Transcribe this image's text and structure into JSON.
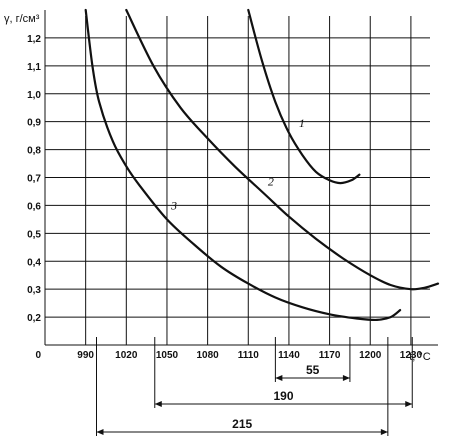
{
  "chart_data": {
    "type": "line",
    "ylabel": "γ, г/см³",
    "xlabel": "t, °C",
    "x_ticks": [
      990,
      1020,
      1050,
      1080,
      1110,
      1140,
      1170,
      1200,
      1230
    ],
    "x_tick_labels": [
      "990",
      "1020",
      "1050",
      "1080",
      "1110",
      "1140",
      "1170",
      "1200",
      "1230"
    ],
    "y_ticks": [
      0.2,
      0.3,
      0.4,
      0.5,
      0.6,
      0.7,
      0.8,
      0.9,
      1.0,
      1.1,
      1.2
    ],
    "y_tick_labels": [
      "0,2",
      "0,3",
      "0,4",
      "0,5",
      "0,6",
      "0,7",
      "0,8",
      "0,9",
      "1,0",
      "1,1",
      "1,2"
    ],
    "origin_label": "0",
    "xlim": [
      960,
      1250
    ],
    "ylim": [
      0.1,
      1.3
    ],
    "grid": true,
    "series": [
      {
        "name": "1",
        "x": [
          1110,
          1120,
          1130,
          1140,
          1150,
          1160,
          1170,
          1178,
          1186,
          1192
        ],
        "y": [
          1.3,
          1.12,
          0.97,
          0.86,
          0.78,
          0.72,
          0.69,
          0.68,
          0.69,
          0.71
        ]
      },
      {
        "name": "2",
        "x": [
          1020,
          1040,
          1060,
          1080,
          1100,
          1120,
          1140,
          1160,
          1180,
          1200,
          1215,
          1230,
          1240,
          1250
        ],
        "y": [
          1.3,
          1.1,
          0.95,
          0.84,
          0.74,
          0.65,
          0.56,
          0.48,
          0.41,
          0.35,
          0.315,
          0.3,
          0.305,
          0.32
        ]
      },
      {
        "name": "3",
        "x": [
          990,
          995,
          1000,
          1010,
          1020,
          1030,
          1050,
          1070,
          1090,
          1110,
          1130,
          1150,
          1170,
          1190,
          1205,
          1215,
          1222
        ],
        "y": [
          1.3,
          1.1,
          0.97,
          0.83,
          0.74,
          0.67,
          0.55,
          0.46,
          0.38,
          0.32,
          0.27,
          0.235,
          0.21,
          0.195,
          0.19,
          0.2,
          0.225
        ]
      }
    ],
    "curve_labels": [
      "1",
      "2",
      "3"
    ],
    "dimension_intervals": [
      {
        "label": "55",
        "from": 1130,
        "to": 1185
      },
      {
        "label": "190",
        "from": 1041,
        "to": 1231
      },
      {
        "label": "215",
        "from": 998,
        "to": 1213
      }
    ]
  }
}
